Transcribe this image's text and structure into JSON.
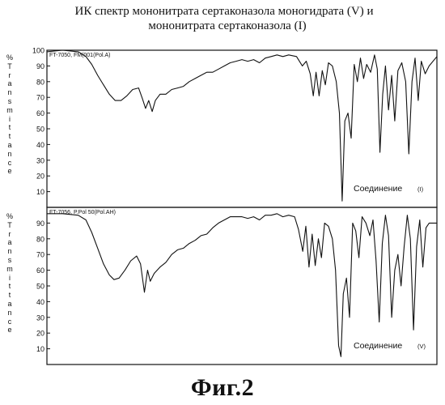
{
  "title_lines": [
    "ИК спектр мононитрата сертаконазола моногидрата  (V) и",
    "мононитрата сертаконазола (I)"
  ],
  "figure_label": "Фиг.2",
  "chart_data": [
    {
      "type": "line",
      "header": "FT-7050, FM(001(Pol.A)",
      "ylabel": "%Transmittance",
      "annotation": {
        "text": "Соединение",
        "compound": "(I)"
      },
      "ylim": [
        0,
        100
      ],
      "yticks": [
        10,
        20,
        30,
        40,
        50,
        60,
        70,
        80,
        90,
        100
      ],
      "xlim": [
        0,
        1
      ],
      "grid": false,
      "series": [
        {
          "points": [
            [
              0.0,
              99
            ],
            [
              0.04,
              100
            ],
            [
              0.08,
              99
            ],
            [
              0.1,
              96
            ],
            [
              0.115,
              91
            ],
            [
              0.13,
              84
            ],
            [
              0.145,
              78
            ],
            [
              0.16,
              72
            ],
            [
              0.175,
              68
            ],
            [
              0.19,
              68
            ],
            [
              0.205,
              71
            ],
            [
              0.22,
              75
            ],
            [
              0.235,
              76
            ],
            [
              0.245,
              69
            ],
            [
              0.253,
              63
            ],
            [
              0.261,
              68
            ],
            [
              0.27,
              61
            ],
            [
              0.278,
              68
            ],
            [
              0.29,
              72
            ],
            [
              0.305,
              72
            ],
            [
              0.32,
              75
            ],
            [
              0.335,
              76
            ],
            [
              0.35,
              77
            ],
            [
              0.365,
              80
            ],
            [
              0.38,
              82
            ],
            [
              0.395,
              84
            ],
            [
              0.41,
              86
            ],
            [
              0.425,
              86
            ],
            [
              0.44,
              88
            ],
            [
              0.455,
              90
            ],
            [
              0.47,
              92
            ],
            [
              0.485,
              93
            ],
            [
              0.5,
              94
            ],
            [
              0.515,
              93
            ],
            [
              0.53,
              94
            ],
            [
              0.545,
              92
            ],
            [
              0.56,
              95
            ],
            [
              0.575,
              96
            ],
            [
              0.59,
              97
            ],
            [
              0.605,
              96
            ],
            [
              0.62,
              97
            ],
            [
              0.64,
              96
            ],
            [
              0.655,
              90
            ],
            [
              0.665,
              93
            ],
            [
              0.675,
              85
            ],
            [
              0.683,
              71
            ],
            [
              0.69,
              86
            ],
            [
              0.698,
              71
            ],
            [
              0.706,
              87
            ],
            [
              0.714,
              78
            ],
            [
              0.722,
              92
            ],
            [
              0.732,
              90
            ],
            [
              0.742,
              80
            ],
            [
              0.75,
              60
            ],
            [
              0.757,
              4
            ],
            [
              0.764,
              55
            ],
            [
              0.772,
              60
            ],
            [
              0.78,
              44
            ],
            [
              0.788,
              91
            ],
            [
              0.796,
              80
            ],
            [
              0.804,
              95
            ],
            [
              0.812,
              82
            ],
            [
              0.82,
              91
            ],
            [
              0.83,
              86
            ],
            [
              0.84,
              97
            ],
            [
              0.847,
              88
            ],
            [
              0.854,
              35
            ],
            [
              0.861,
              72
            ],
            [
              0.868,
              90
            ],
            [
              0.876,
              62
            ],
            [
              0.884,
              84
            ],
            [
              0.892,
              55
            ],
            [
              0.9,
              87
            ],
            [
              0.91,
              92
            ],
            [
              0.92,
              80
            ],
            [
              0.928,
              34
            ],
            [
              0.936,
              80
            ],
            [
              0.944,
              95
            ],
            [
              0.952,
              68
            ],
            [
              0.96,
              93
            ],
            [
              0.97,
              85
            ],
            [
              0.98,
              90
            ],
            [
              1.0,
              96
            ]
          ]
        }
      ]
    },
    {
      "type": "line",
      "header": "FT-7056, P.Pol 50(Pol.AH)",
      "ylabel": "%Transmittance",
      "annotation": {
        "text": "Соединение",
        "compound": "(V)"
      },
      "ylim": [
        0,
        100
      ],
      "yticks": [
        10,
        20,
        30,
        40,
        50,
        60,
        70,
        80,
        90
      ],
      "xlim": [
        0,
        1
      ],
      "grid": false,
      "series": [
        {
          "points": [
            [
              0.0,
              96
            ],
            [
              0.04,
              96
            ],
            [
              0.08,
              95
            ],
            [
              0.1,
              92
            ],
            [
              0.115,
              84
            ],
            [
              0.13,
              74
            ],
            [
              0.145,
              64
            ],
            [
              0.16,
              57
            ],
            [
              0.172,
              54
            ],
            [
              0.185,
              55
            ],
            [
              0.2,
              60
            ],
            [
              0.215,
              66
            ],
            [
              0.23,
              69
            ],
            [
              0.24,
              64
            ],
            [
              0.25,
              46
            ],
            [
              0.258,
              60
            ],
            [
              0.265,
              53
            ],
            [
              0.275,
              58
            ],
            [
              0.29,
              62
            ],
            [
              0.305,
              65
            ],
            [
              0.32,
              70
            ],
            [
              0.335,
              73
            ],
            [
              0.35,
              74
            ],
            [
              0.365,
              77
            ],
            [
              0.38,
              79
            ],
            [
              0.395,
              82
            ],
            [
              0.41,
              83
            ],
            [
              0.425,
              87
            ],
            [
              0.44,
              90
            ],
            [
              0.455,
              92
            ],
            [
              0.47,
              94
            ],
            [
              0.485,
              94
            ],
            [
              0.5,
              94
            ],
            [
              0.515,
              93
            ],
            [
              0.53,
              94
            ],
            [
              0.545,
              92
            ],
            [
              0.56,
              95
            ],
            [
              0.575,
              95
            ],
            [
              0.59,
              96
            ],
            [
              0.605,
              94
            ],
            [
              0.62,
              95
            ],
            [
              0.635,
              94
            ],
            [
              0.645,
              86
            ],
            [
              0.656,
              72
            ],
            [
              0.664,
              88
            ],
            [
              0.672,
              62
            ],
            [
              0.68,
              83
            ],
            [
              0.688,
              63
            ],
            [
              0.696,
              80
            ],
            [
              0.704,
              68
            ],
            [
              0.712,
              90
            ],
            [
              0.722,
              88
            ],
            [
              0.732,
              80
            ],
            [
              0.74,
              60
            ],
            [
              0.748,
              12
            ],
            [
              0.754,
              5
            ],
            [
              0.76,
              45
            ],
            [
              0.768,
              55
            ],
            [
              0.776,
              30
            ],
            [
              0.784,
              90
            ],
            [
              0.792,
              85
            ],
            [
              0.8,
              68
            ],
            [
              0.808,
              94
            ],
            [
              0.818,
              90
            ],
            [
              0.828,
              82
            ],
            [
              0.836,
              92
            ],
            [
              0.844,
              66
            ],
            [
              0.852,
              27
            ],
            [
              0.86,
              77
            ],
            [
              0.868,
              95
            ],
            [
              0.876,
              82
            ],
            [
              0.884,
              30
            ],
            [
              0.892,
              60
            ],
            [
              0.9,
              70
            ],
            [
              0.908,
              50
            ],
            [
              0.916,
              75
            ],
            [
              0.924,
              95
            ],
            [
              0.932,
              80
            ],
            [
              0.94,
              22
            ],
            [
              0.948,
              75
            ],
            [
              0.956,
              92
            ],
            [
              0.964,
              62
            ],
            [
              0.972,
              87
            ],
            [
              0.98,
              90
            ],
            [
              1.0,
              90
            ]
          ]
        }
      ]
    }
  ]
}
